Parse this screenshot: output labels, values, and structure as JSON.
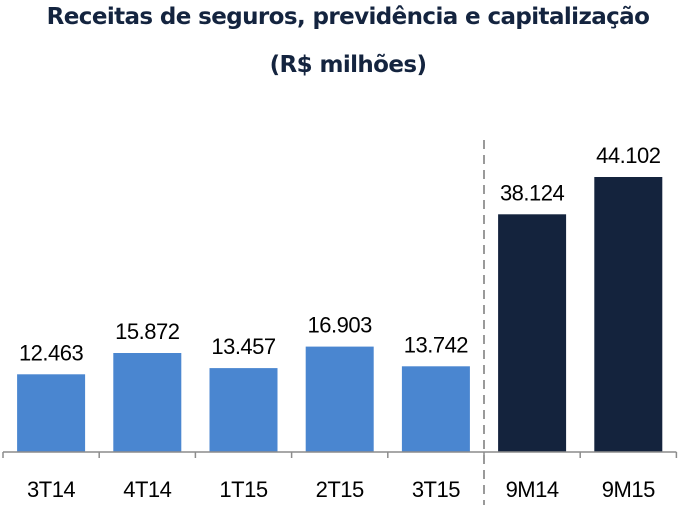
{
  "chart_data": {
    "type": "bar",
    "title": "Receitas de seguros, previdência e capitalização",
    "subtitle": "(R$ milhões)",
    "xlabel": "",
    "ylabel": "",
    "ylim": [
      0,
      47000
    ],
    "grid": false,
    "legend": "none",
    "categories": [
      "3T14",
      "4T14",
      "1T15",
      "2T15",
      "3T15",
      "9M14",
      "9M15"
    ],
    "values": [
      12463,
      15872,
      13457,
      16903,
      13742,
      38124,
      44102
    ],
    "value_labels": [
      "12.463",
      "15.872",
      "13.457",
      "16.903",
      "13.742",
      "38.124",
      "44.102"
    ],
    "colors": [
      "#4a86d0",
      "#4a86d0",
      "#4a86d0",
      "#4a86d0",
      "#4a86d0",
      "#14233d",
      "#14233d"
    ],
    "separator_after_index": 4
  }
}
